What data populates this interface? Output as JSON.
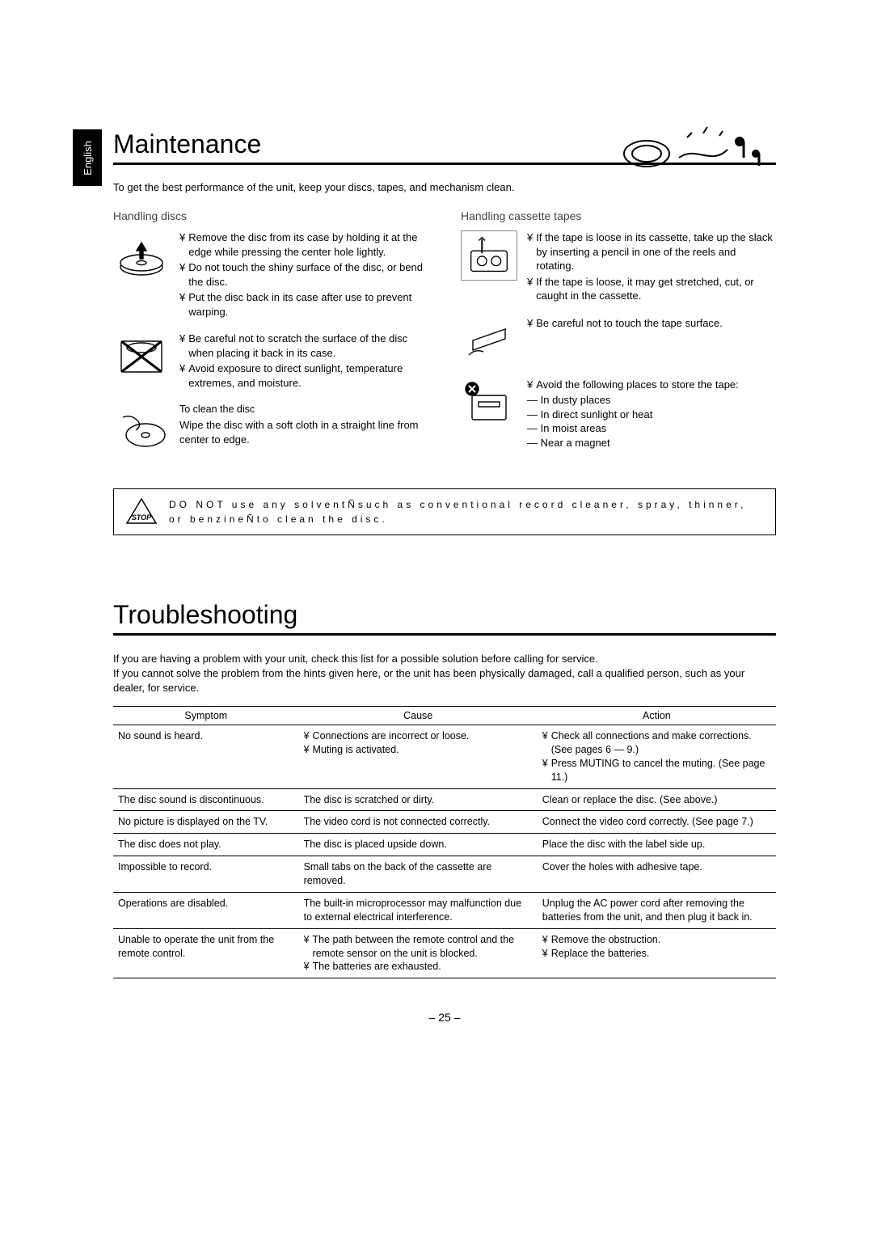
{
  "language_tab": "English",
  "page_number": "– 25 –",
  "maintenance": {
    "heading": "Maintenance",
    "intro": "To get the best performance of the unit, keep your discs, tapes, and mechanism clean.",
    "discs": {
      "heading": "Handling discs",
      "item1": {
        "b1": "Remove the disc from its case by holding it at the edge while pressing the center hole lightly.",
        "b2": "Do not touch the shiny surface of the disc, or bend the disc.",
        "b3": "Put the disc back in its case after use to prevent warping."
      },
      "item2": {
        "b1": "Be careful not to scratch the surface of the disc when placing it back in its case.",
        "b2": "Avoid exposure to direct sunlight, temperature extremes, and moisture."
      },
      "item3": {
        "title": "To clean the disc",
        "line": "Wipe the disc with a soft cloth in a straight line from center to edge."
      }
    },
    "tapes": {
      "heading": "Handling cassette tapes",
      "item1": {
        "b1": "If the tape is loose in its cassette, take up the slack by inserting a pencil in one of the reels and rotating.",
        "b2": "If the tape is loose, it may get stretched, cut, or caught in the cassette."
      },
      "item2": {
        "b1": "Be careful not to touch the tape surface."
      },
      "item3": {
        "b1": "Avoid the following places to store the tape:",
        "l1": "— In dusty places",
        "l2": "— In direct sunlight or heat",
        "l3": "— In moist areas",
        "l4": "— Near a magnet"
      }
    },
    "stop_notice": "DO NOT use any solventÑsuch as conventional record cleaner, spray, thinner, or benzineÑto clean the disc."
  },
  "troubleshooting": {
    "heading": "Troubleshooting",
    "intro1": "If you are having a problem with your unit, check this list for a possible solution before calling for service.",
    "intro2": "If you cannot solve the problem from the hints given here, or the unit has been physically damaged, call a qualified person, such as your dealer, for service.",
    "headers": {
      "c1": "Symptom",
      "c2": "Cause",
      "c3": "Action"
    },
    "rows": [
      {
        "symptom": "No sound is heard.",
        "cause": [
          "Connections are incorrect or loose.",
          "Muting is activated."
        ],
        "action": [
          "Check all connections and make corrections. (See pages 6 — 9.)",
          "Press MUTING to cancel the muting. (See page 11.)"
        ]
      },
      {
        "symptom": "The disc sound is discontinuous.",
        "cause_plain": "The disc is scratched or dirty.",
        "action_plain": "Clean or replace the disc. (See above.)"
      },
      {
        "symptom": "No picture is displayed on the TV.",
        "cause_plain": "The video cord is not connected correctly.",
        "action_plain": "Connect the video cord correctly. (See page 7.)"
      },
      {
        "symptom": "The disc does not play.",
        "cause_plain": "The disc is placed upside down.",
        "action_plain": "Place the disc with the label side up."
      },
      {
        "symptom": "Impossible to record.",
        "cause_plain": "Small tabs on the back of the cassette are removed.",
        "action_plain": "Cover the holes with adhesive tape."
      },
      {
        "symptom": "Operations are disabled.",
        "cause_plain": "The built-in microprocessor may malfunction due to external electrical interference.",
        "action_plain": "Unplug the AC power cord after removing the batteries from the unit, and then plug it back in."
      },
      {
        "symptom": "Unable to operate the unit from the remote control.",
        "cause": [
          "The path between the remote control and the remote sensor on the unit is blocked.",
          "The batteries are exhausted."
        ],
        "action": [
          "Remove the obstruction.",
          "Replace the batteries."
        ]
      }
    ]
  }
}
